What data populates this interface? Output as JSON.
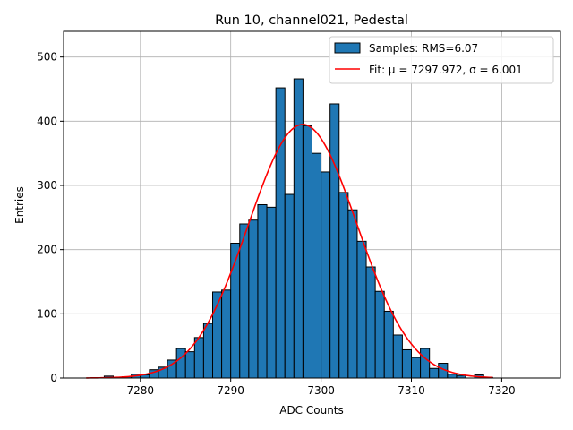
{
  "chart_data": {
    "type": "bar",
    "title": "Run 10, channel021, Pedestal",
    "xlabel": "ADC Counts",
    "ylabel": "Entries",
    "xlim": [
      7271.5,
      7326.5
    ],
    "ylim": [
      0,
      540
    ],
    "xticks": [
      7280,
      7290,
      7300,
      7310,
      7320
    ],
    "yticks": [
      0,
      100,
      200,
      300,
      400,
      500
    ],
    "grid": true,
    "legend_position": "top-right",
    "bin_width": 1,
    "histogram": {
      "name": "Samples: RMS=6.07",
      "bin_lefts": [
        7276,
        7277,
        7278,
        7279,
        7280,
        7281,
        7282,
        7283,
        7284,
        7285,
        7286,
        7287,
        7288,
        7289,
        7290,
        7291,
        7292,
        7293,
        7294,
        7295,
        7296,
        7297,
        7298,
        7299,
        7300,
        7301,
        7302,
        7303,
        7304,
        7305,
        7306,
        7307,
        7308,
        7309,
        7310,
        7311,
        7312,
        7313,
        7314,
        7315,
        7316,
        7317,
        7318
      ],
      "values": [
        3,
        1,
        2,
        6,
        5,
        13,
        17,
        28,
        46,
        41,
        63,
        85,
        134,
        137,
        210,
        240,
        246,
        270,
        266,
        452,
        286,
        466,
        393,
        350,
        321,
        427,
        289,
        262,
        213,
        173,
        135,
        104,
        67,
        44,
        32,
        46,
        15,
        23,
        6,
        4,
        0,
        5,
        1
      ]
    },
    "fit": {
      "name": "Fit: μ = 7297.972, σ = 6.001",
      "mu": 7297.972,
      "sigma": 6.001,
      "amplitude": 395,
      "x_range": [
        7274,
        7319
      ]
    },
    "colors": {
      "bars": "#1f77b4",
      "bar_edge": "#000000",
      "fit": "#ff0000",
      "grid": "#b0b0b0"
    }
  }
}
